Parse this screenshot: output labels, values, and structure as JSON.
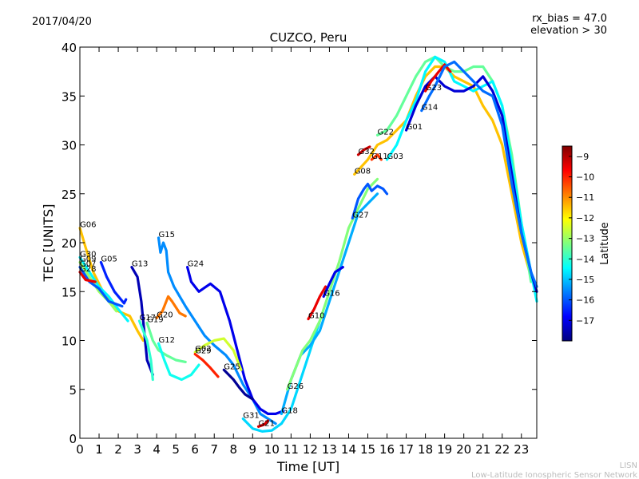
{
  "chart_data": {
    "type": "scatter",
    "title": "CUZCO, Peru",
    "date": "2017/04/20",
    "annotation_lines": [
      "rx_bias = 47.0",
      "elevation > 30"
    ],
    "xlabel": "Time [UT]",
    "ylabel": "TEC [UNITS]",
    "xlim": [
      0,
      23.8
    ],
    "ylim": [
      0,
      40
    ],
    "xticks": [
      0,
      1,
      2,
      3,
      4,
      5,
      6,
      7,
      8,
      9,
      10,
      11,
      12,
      13,
      14,
      15,
      16,
      17,
      18,
      19,
      20,
      21,
      22,
      23
    ],
    "yticks": [
      0,
      5,
      10,
      15,
      20,
      25,
      30,
      35,
      40
    ],
    "grid": false,
    "colorbar": {
      "label": "Latitude",
      "range": [
        -18,
        -8.5
      ],
      "ticks": [
        -9,
        -10,
        -11,
        -12,
        -13,
        -14,
        -15,
        -16,
        -17
      ],
      "colors": [
        "#00007f",
        "#0000ff",
        "#007fff",
        "#00ffff",
        "#7fff7f",
        "#ffff00",
        "#ff7f00",
        "#ff0000",
        "#7f0000"
      ]
    },
    "credits": [
      "LISN",
      "Low-Latitude Ionospheric Sensor Network"
    ],
    "series": [
      {
        "name": "G06",
        "lat": -11.5,
        "points": [
          [
            0,
            21.5
          ],
          [
            0.3,
            19.5
          ],
          [
            0.7,
            17
          ],
          [
            1.2,
            15
          ],
          [
            2,
            13
          ],
          [
            2.6,
            12.5
          ],
          [
            3,
            11
          ],
          [
            3.3,
            10
          ]
        ]
      },
      {
        "name": "G30",
        "lat": -14.5,
        "points": [
          [
            0,
            18.5
          ],
          [
            0.5,
            17
          ],
          [
            1,
            15.5
          ],
          [
            1.5,
            14.5
          ],
          [
            2,
            13.2
          ],
          [
            2.5,
            12
          ]
        ]
      },
      {
        "name": "G09",
        "lat": -13,
        "points": [
          [
            0,
            18
          ],
          [
            0.5,
            16.5
          ],
          [
            1,
            15
          ],
          [
            1.5,
            14
          ],
          [
            1.9,
            13
          ]
        ]
      },
      {
        "name": "G07",
        "lat": -16,
        "points": [
          [
            0,
            17.5
          ],
          [
            0.5,
            16
          ],
          [
            1,
            15.3
          ],
          [
            1.5,
            14
          ],
          [
            2.2,
            13.5
          ]
        ]
      },
      {
        "name": "G28",
        "lat": -9.5,
        "points": [
          [
            0,
            17
          ],
          [
            0.3,
            16.2
          ],
          [
            0.8,
            16
          ]
        ]
      },
      {
        "name": "G05",
        "lat": -16.5,
        "points": [
          [
            1.1,
            18
          ],
          [
            1.4,
            16.5
          ],
          [
            1.8,
            15
          ],
          [
            2.3,
            13.8
          ],
          [
            2.4,
            14.2
          ]
        ]
      },
      {
        "name": "G13",
        "lat": -17.5,
        "points": [
          [
            2.7,
            17.5
          ],
          [
            3,
            16.5
          ],
          [
            3.2,
            14
          ],
          [
            3.35,
            11
          ],
          [
            3.5,
            8
          ],
          [
            3.8,
            6.5
          ]
        ]
      },
      {
        "name": "G15",
        "lat": -15.5,
        "points": [
          [
            4.1,
            20.5
          ],
          [
            4.2,
            19
          ],
          [
            4.35,
            20
          ],
          [
            4.5,
            19.2
          ],
          [
            4.6,
            17
          ],
          [
            4.9,
            15.5
          ],
          [
            5.5,
            13.5
          ],
          [
            6,
            12
          ],
          [
            6.5,
            10.5
          ],
          [
            7,
            9.5
          ],
          [
            7.6,
            8.5
          ],
          [
            8,
            7.5
          ],
          [
            8.5,
            5.5
          ],
          [
            9,
            4
          ],
          [
            9.4,
            2.5
          ],
          [
            9.8,
            2
          ],
          [
            10.2,
            1.5
          ]
        ]
      },
      {
        "name": "G24",
        "lat": -17,
        "points": [
          [
            5.6,
            17.5
          ],
          [
            5.8,
            16
          ],
          [
            6.2,
            15
          ],
          [
            6.8,
            15.8
          ],
          [
            7.3,
            15
          ],
          [
            7.8,
            12
          ],
          [
            8.2,
            9
          ],
          [
            8.6,
            6
          ],
          [
            9,
            4
          ],
          [
            9.4,
            3
          ],
          [
            9.8,
            2.5
          ],
          [
            10.2,
            2.5
          ],
          [
            10.6,
            2.8
          ]
        ]
      },
      {
        "name": "G19",
        "lat": -13.5,
        "points": [
          [
            3.5,
            11.8
          ],
          [
            3.8,
            10
          ],
          [
            4.1,
            9
          ],
          [
            4.5,
            8.5
          ],
          [
            5,
            8
          ],
          [
            5.5,
            7.8
          ]
        ]
      },
      {
        "name": "G17",
        "lat": -14,
        "points": [
          [
            3.1,
            12
          ],
          [
            3.3,
            11
          ],
          [
            3.5,
            10
          ],
          [
            3.7,
            8
          ],
          [
            3.8,
            6
          ]
        ]
      },
      {
        "name": "G20",
        "lat": -10.8,
        "points": [
          [
            4,
            12.3
          ],
          [
            4.3,
            13
          ],
          [
            4.6,
            14.5
          ],
          [
            4.8,
            14
          ],
          [
            5.2,
            12.8
          ],
          [
            5.5,
            12.5
          ]
        ]
      },
      {
        "name": "G12",
        "lat": -14.3,
        "points": [
          [
            4.1,
            9.7
          ],
          [
            4.4,
            8
          ],
          [
            4.7,
            6.5
          ],
          [
            5.3,
            6
          ],
          [
            5.8,
            6.5
          ],
          [
            6.2,
            7.5
          ]
        ]
      },
      {
        "name": "G02",
        "lat": -12.5,
        "points": [
          [
            6,
            8.8
          ],
          [
            6.5,
            9.5
          ],
          [
            7,
            10
          ],
          [
            7.5,
            10.2
          ],
          [
            8,
            9
          ],
          [
            8.4,
            7
          ]
        ]
      },
      {
        "name": "G29",
        "lat": -10,
        "points": [
          [
            6,
            8.6
          ],
          [
            6.4,
            8
          ],
          [
            6.8,
            7.2
          ],
          [
            7.2,
            6.3
          ]
        ]
      },
      {
        "name": "G25",
        "lat": -17.8,
        "points": [
          [
            7.5,
            7
          ],
          [
            8,
            6
          ],
          [
            8.3,
            5.2
          ],
          [
            8.6,
            4.5
          ],
          [
            9,
            4
          ]
        ]
      },
      {
        "name": "G21",
        "lat": -9.3,
        "points": [
          [
            9.3,
            1.2
          ],
          [
            9.6,
            1.4
          ],
          [
            9.8,
            1.8
          ]
        ]
      },
      {
        "name": "G31",
        "lat": -14.8,
        "points": [
          [
            8.5,
            2
          ],
          [
            9,
            1
          ],
          [
            9.5,
            0.7
          ],
          [
            10,
            0.8
          ],
          [
            10.5,
            1.5
          ],
          [
            11,
            3
          ],
          [
            11.5,
            6
          ],
          [
            12,
            9
          ],
          [
            12.5,
            12
          ]
        ]
      },
      {
        "name": "G18",
        "lat": -15.2,
        "points": [
          [
            10.5,
            2.5
          ],
          [
            11,
            6
          ],
          [
            11.5,
            8.5
          ],
          [
            12,
            9.5
          ],
          [
            12.5,
            11
          ],
          [
            13,
            14
          ],
          [
            13.5,
            17
          ],
          [
            14,
            20
          ],
          [
            14.5,
            23
          ],
          [
            15,
            24
          ],
          [
            15.5,
            25
          ]
        ]
      },
      {
        "name": "G26",
        "lat": -13.2,
        "points": [
          [
            10.8,
            5
          ],
          [
            11.2,
            7
          ],
          [
            11.6,
            9
          ],
          [
            12,
            10
          ],
          [
            12.5,
            12
          ],
          [
            13,
            15
          ],
          [
            13.5,
            18
          ],
          [
            14,
            21.5
          ],
          [
            14.5,
            23.5
          ],
          [
            15,
            25.5
          ],
          [
            15.5,
            26.5
          ]
        ]
      },
      {
        "name": "G10",
        "lat": -9.5,
        "points": [
          [
            11.9,
            12.2
          ],
          [
            12.2,
            13.2
          ],
          [
            12.5,
            14.5
          ],
          [
            12.8,
            15.5
          ]
        ]
      },
      {
        "name": "G16",
        "lat": -17,
        "points": [
          [
            12.7,
            14.5
          ],
          [
            13,
            15.8
          ],
          [
            13.3,
            17
          ],
          [
            13.7,
            17.5
          ]
        ]
      },
      {
        "name": "G27",
        "lat": -16,
        "points": [
          [
            14.2,
            22.5
          ],
          [
            14.5,
            24.5
          ],
          [
            14.8,
            25.5
          ],
          [
            15,
            26
          ],
          [
            15.2,
            25.3
          ],
          [
            15.5,
            25.8
          ],
          [
            15.8,
            25.5
          ],
          [
            16,
            25
          ]
        ]
      },
      {
        "name": "G32",
        "lat": -9.2,
        "points": [
          [
            14.5,
            29
          ],
          [
            14.8,
            29.5
          ],
          [
            15.1,
            29.8
          ]
        ]
      },
      {
        "name": "G11",
        "lat": -10.2,
        "points": [
          [
            15.2,
            28.5
          ],
          [
            15.5,
            29
          ],
          [
            15.7,
            28.5
          ]
        ]
      },
      {
        "name": "G08",
        "lat": -11.5,
        "points": [
          [
            14.3,
            27
          ],
          [
            15,
            28.5
          ],
          [
            15.5,
            30
          ],
          [
            16,
            30.5
          ],
          [
            16.5,
            31.5
          ],
          [
            17,
            32.5
          ],
          [
            17.5,
            35
          ],
          [
            18,
            37
          ],
          [
            18.5,
            38
          ],
          [
            19,
            38
          ],
          [
            19.5,
            37
          ],
          [
            20,
            36.5
          ],
          [
            20.5,
            36
          ],
          [
            21,
            34
          ],
          [
            21.5,
            32.5
          ],
          [
            22,
            30
          ],
          [
            22.5,
            25
          ],
          [
            23,
            20
          ],
          [
            23.5,
            16.5
          ]
        ]
      },
      {
        "name": "G22",
        "lat": -13.5,
        "points": [
          [
            15.5,
            31
          ],
          [
            16,
            31.5
          ],
          [
            16.5,
            33
          ],
          [
            17,
            35
          ],
          [
            17.5,
            37
          ],
          [
            18,
            38.5
          ],
          [
            18.5,
            39
          ],
          [
            19,
            38
          ],
          [
            19.5,
            37.5
          ],
          [
            20,
            37.5
          ],
          [
            20.5,
            38
          ],
          [
            21,
            38
          ],
          [
            21.5,
            36.5
          ],
          [
            22,
            34
          ],
          [
            22.5,
            29
          ],
          [
            23,
            22
          ],
          [
            23.5,
            16
          ]
        ]
      },
      {
        "name": "G03",
        "lat": -14.5,
        "points": [
          [
            16,
            28.5
          ],
          [
            16.5,
            30
          ],
          [
            17,
            32.5
          ],
          [
            17.5,
            34.5
          ],
          [
            18,
            37.5
          ],
          [
            18.5,
            39
          ],
          [
            19,
            38.5
          ],
          [
            19.5,
            36.5
          ],
          [
            20,
            36
          ],
          [
            20.5,
            35.5
          ],
          [
            21,
            36
          ],
          [
            21.5,
            36.5
          ],
          [
            22,
            34
          ],
          [
            22.5,
            28
          ],
          [
            23,
            22
          ],
          [
            23.5,
            17
          ],
          [
            23.8,
            14
          ]
        ]
      },
      {
        "name": "G01",
        "lat": -17.2,
        "points": [
          [
            17,
            31.5
          ],
          [
            17.5,
            34
          ],
          [
            18,
            36
          ],
          [
            18.5,
            37
          ],
          [
            19,
            36
          ],
          [
            19.5,
            35.5
          ],
          [
            20,
            35.5
          ],
          [
            20.5,
            36
          ],
          [
            21,
            37
          ],
          [
            21.5,
            35.5
          ],
          [
            22,
            33
          ],
          [
            22.5,
            27
          ],
          [
            23,
            21
          ],
          [
            23.5,
            17
          ],
          [
            23.8,
            15
          ]
        ]
      },
      {
        "name": "G23",
        "lat": -9.5,
        "points": [
          [
            18,
            35.5
          ],
          [
            18.3,
            36.5
          ],
          [
            18.7,
            37.5
          ],
          [
            19,
            38.2
          ],
          [
            19.3,
            37.5
          ]
        ]
      },
      {
        "name": "G14",
        "lat": -15.8,
        "points": [
          [
            17.8,
            33.5
          ],
          [
            18.2,
            35
          ],
          [
            18.5,
            36
          ],
          [
            19,
            38
          ],
          [
            19.5,
            38.5
          ],
          [
            20,
            37.5
          ],
          [
            20.5,
            36.5
          ],
          [
            21,
            35.5
          ],
          [
            21.5,
            35
          ],
          [
            22,
            32
          ],
          [
            22.5,
            26
          ],
          [
            23,
            21
          ],
          [
            23.5,
            17
          ],
          [
            23.8,
            15.5
          ]
        ]
      }
    ]
  }
}
